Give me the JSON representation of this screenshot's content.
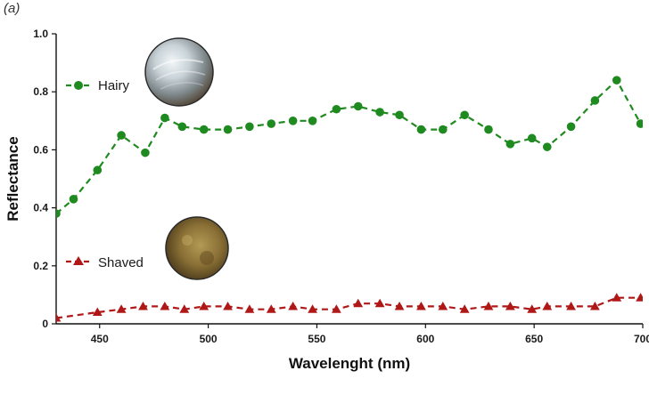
{
  "panel_label": "(a)",
  "chart_data": {
    "type": "line",
    "xlabel": "Wavelenght (nm)",
    "ylabel": "Reflectance",
    "xlim": [
      430,
      700
    ],
    "ylim": [
      0,
      1.0
    ],
    "x_ticks": [
      450,
      500,
      550,
      600,
      650,
      700
    ],
    "y_ticks": [
      0,
      0.2,
      0.4,
      0.6,
      0.8,
      1.0
    ],
    "x_tick_labels": [
      "450",
      "500",
      "550",
      "600",
      "650",
      "700"
    ],
    "y_tick_labels": [
      "0",
      "0.2",
      "0.4",
      "0.6",
      "0.8",
      "1.0"
    ],
    "grid": false,
    "legend_placement": "left",
    "series": [
      {
        "name": "Hairy",
        "color": "#1f8a1f",
        "marker": "circle",
        "line_style": "dashed",
        "x": [
          430,
          438,
          449,
          460,
          471,
          480,
          488,
          498,
          509,
          519,
          529,
          539,
          548,
          559,
          569,
          579,
          588,
          598,
          608,
          618,
          629,
          639,
          649,
          656,
          667,
          678,
          688,
          699
        ],
        "y": [
          0.38,
          0.43,
          0.53,
          0.65,
          0.59,
          0.71,
          0.68,
          0.67,
          0.67,
          0.68,
          0.69,
          0.7,
          0.7,
          0.74,
          0.75,
          0.73,
          0.72,
          0.67,
          0.67,
          0.72,
          0.67,
          0.62,
          0.64,
          0.61,
          0.68,
          0.77,
          0.84,
          0.69
        ]
      },
      {
        "name": "Shaved",
        "color": "#b01818",
        "marker": "triangle",
        "line_style": "dashed",
        "x": [
          430,
          449,
          460,
          470,
          480,
          489,
          498,
          509,
          519,
          529,
          539,
          548,
          559,
          569,
          579,
          588,
          598,
          608,
          618,
          629,
          639,
          649,
          656,
          667,
          678,
          688,
          699
        ],
        "y": [
          0.02,
          0.04,
          0.05,
          0.06,
          0.06,
          0.05,
          0.06,
          0.06,
          0.05,
          0.05,
          0.06,
          0.05,
          0.05,
          0.07,
          0.07,
          0.06,
          0.06,
          0.06,
          0.05,
          0.06,
          0.06,
          0.05,
          0.06,
          0.06,
          0.06,
          0.09,
          0.09
        ]
      }
    ],
    "inset_images": [
      {
        "name": "hairy-surface-photo",
        "depicts": "Hairy",
        "colors": [
          "#e8eef2",
          "#8e9aa0",
          "#5a4a38"
        ]
      },
      {
        "name": "shaved-surface-photo",
        "depicts": "Shaved",
        "colors": [
          "#a08a4a",
          "#6a5428",
          "#3a2c16"
        ]
      }
    ]
  }
}
